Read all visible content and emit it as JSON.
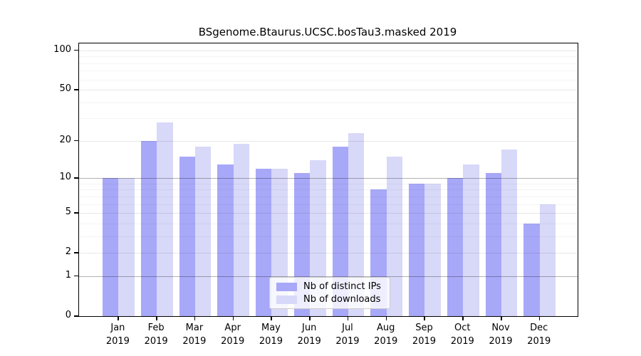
{
  "chart_data": {
    "type": "bar",
    "title": "BSgenome.Btaurus.UCSC.bosTau3.masked 2019",
    "categories": [
      "Jan 2019",
      "Feb 2019",
      "Mar 2019",
      "Apr 2019",
      "May 2019",
      "Jun 2019",
      "Jul 2019",
      "Aug 2019",
      "Sep 2019",
      "Oct 2019",
      "Nov 2019",
      "Dec 2019"
    ],
    "series": [
      {
        "name": "Nb of distinct IPs",
        "color": "#a8a8f8",
        "values": [
          10,
          20,
          15,
          13,
          12,
          11,
          18,
          8,
          9,
          10,
          11,
          4
        ]
      },
      {
        "name": "Nb of downloads",
        "color": "#d8d8f8",
        "values": [
          10,
          28,
          18,
          19,
          12,
          14,
          23,
          15,
          9,
          13,
          17,
          6
        ]
      }
    ],
    "xlabel": "",
    "ylabel": "",
    "yscale": "log1p",
    "ylim": [
      0,
      113
    ],
    "yticks": [
      0,
      1,
      2,
      5,
      10,
      20,
      50,
      100
    ],
    "grid": {
      "major": [
        2,
        5,
        20,
        50,
        100
      ],
      "minor": [
        3,
        4,
        6,
        7,
        8,
        9,
        30,
        40,
        60,
        70,
        80,
        90
      ],
      "emphasized": [
        1,
        10
      ]
    },
    "legend_position": "bottom-center-inside"
  }
}
